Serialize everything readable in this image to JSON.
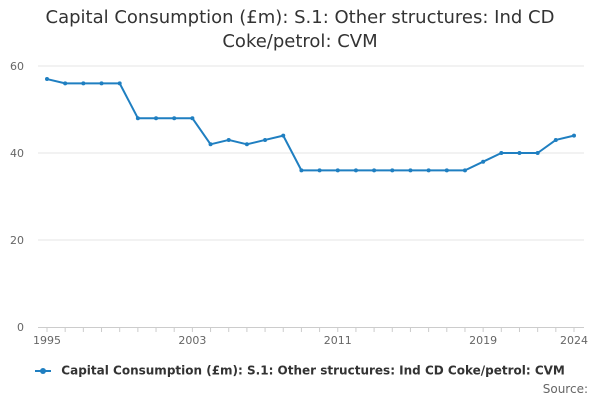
{
  "chart_data": {
    "type": "line",
    "title": "Capital Consumption (£m): S.1: Other structures: Ind CD Coke/petrol: CVM",
    "xlabel": "",
    "ylabel": "",
    "xlim": [
      1995,
      2024
    ],
    "ylim": [
      0,
      60
    ],
    "x_ticks": [
      1995,
      2003,
      2011,
      2019,
      2024
    ],
    "y_ticks": [
      0,
      20,
      40,
      60
    ],
    "grid": true,
    "legend_position": "bottom",
    "series": [
      {
        "name": "Capital Consumption (£m): S.1: Other structures: Ind CD Coke/petrol: CVM",
        "color": "#1f7fc1",
        "x": [
          1995,
          1996,
          1997,
          1998,
          1999,
          2000,
          2001,
          2002,
          2003,
          2004,
          2005,
          2006,
          2007,
          2008,
          2009,
          2010,
          2011,
          2012,
          2013,
          2014,
          2015,
          2016,
          2017,
          2018,
          2019,
          2020,
          2021,
          2022,
          2023,
          2024
        ],
        "values": [
          57,
          56,
          56,
          56,
          56,
          48,
          48,
          48,
          48,
          42,
          43,
          42,
          43,
          44,
          36,
          36,
          36,
          36,
          36,
          36,
          36,
          36,
          36,
          36,
          38,
          40,
          40,
          40,
          43,
          44
        ]
      }
    ]
  },
  "source_label": "Source:"
}
